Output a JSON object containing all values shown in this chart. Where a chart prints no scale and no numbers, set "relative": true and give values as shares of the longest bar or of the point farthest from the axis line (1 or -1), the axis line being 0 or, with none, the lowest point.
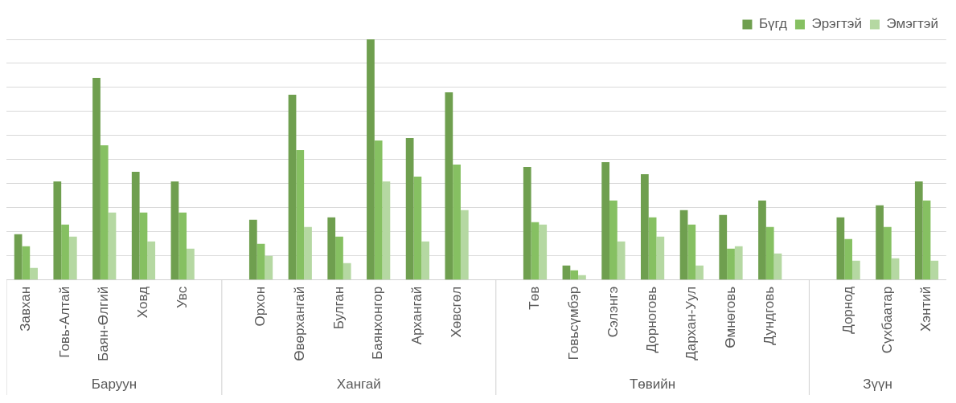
{
  "chart_data": {
    "type": "bar",
    "relative": true,
    "grid": "y",
    "legend": "top",
    "categories": [
      "Завхан",
      "Говь-Алтай",
      "Баян-Өлгий",
      "Ховд",
      "Увс",
      null,
      "Орхон",
      "Өвөрхангай",
      "Булган",
      "Баянхонгор",
      "Архангай",
      "Хөвсгөл",
      null,
      "Төв",
      "Говьсүмбэр",
      "Сэлэнгэ",
      "Дорноговь",
      "Дархан-Уул",
      "Өмнөговь",
      "Дундговь",
      null,
      "Дорнод",
      "Сүхбаатар",
      "Хэнтий"
    ],
    "series": [
      {
        "name": "Бүгд",
        "color": "#6f9f4f",
        "values": [
          0.19,
          0.41,
          0.84,
          0.45,
          0.41,
          null,
          0.25,
          0.77,
          0.26,
          1,
          0.59,
          0.78,
          null,
          0.47,
          0.06,
          0.49,
          0.44,
          0.29,
          0.27,
          0.33,
          null,
          0.26,
          0.31,
          0.41
        ]
      },
      {
        "name": "Эрэгтэй",
        "color": "#86c062",
        "values": [
          0.14,
          0.23,
          0.56,
          0.28,
          0.28,
          null,
          0.15,
          0.54,
          0.18,
          0.58,
          0.43,
          0.48,
          null,
          0.24,
          0.04,
          0.33,
          0.26,
          0.23,
          0.13,
          0.22,
          null,
          0.17,
          0.22,
          0.33
        ]
      },
      {
        "name": "Эмэгтэй",
        "color": "#b5d8a2",
        "values": [
          0.05,
          0.18,
          0.28,
          0.16,
          0.13,
          null,
          0.1,
          0.22,
          0.07,
          0.41,
          0.16,
          0.29,
          null,
          0.23,
          0.02,
          0.16,
          0.18,
          0.06,
          0.14,
          0.11,
          null,
          0.08,
          0.09,
          0.08
        ]
      }
    ],
    "annotations": [
      "Баруун",
      "Хангай",
      "Төвийн",
      "Зүүн"
    ]
  }
}
